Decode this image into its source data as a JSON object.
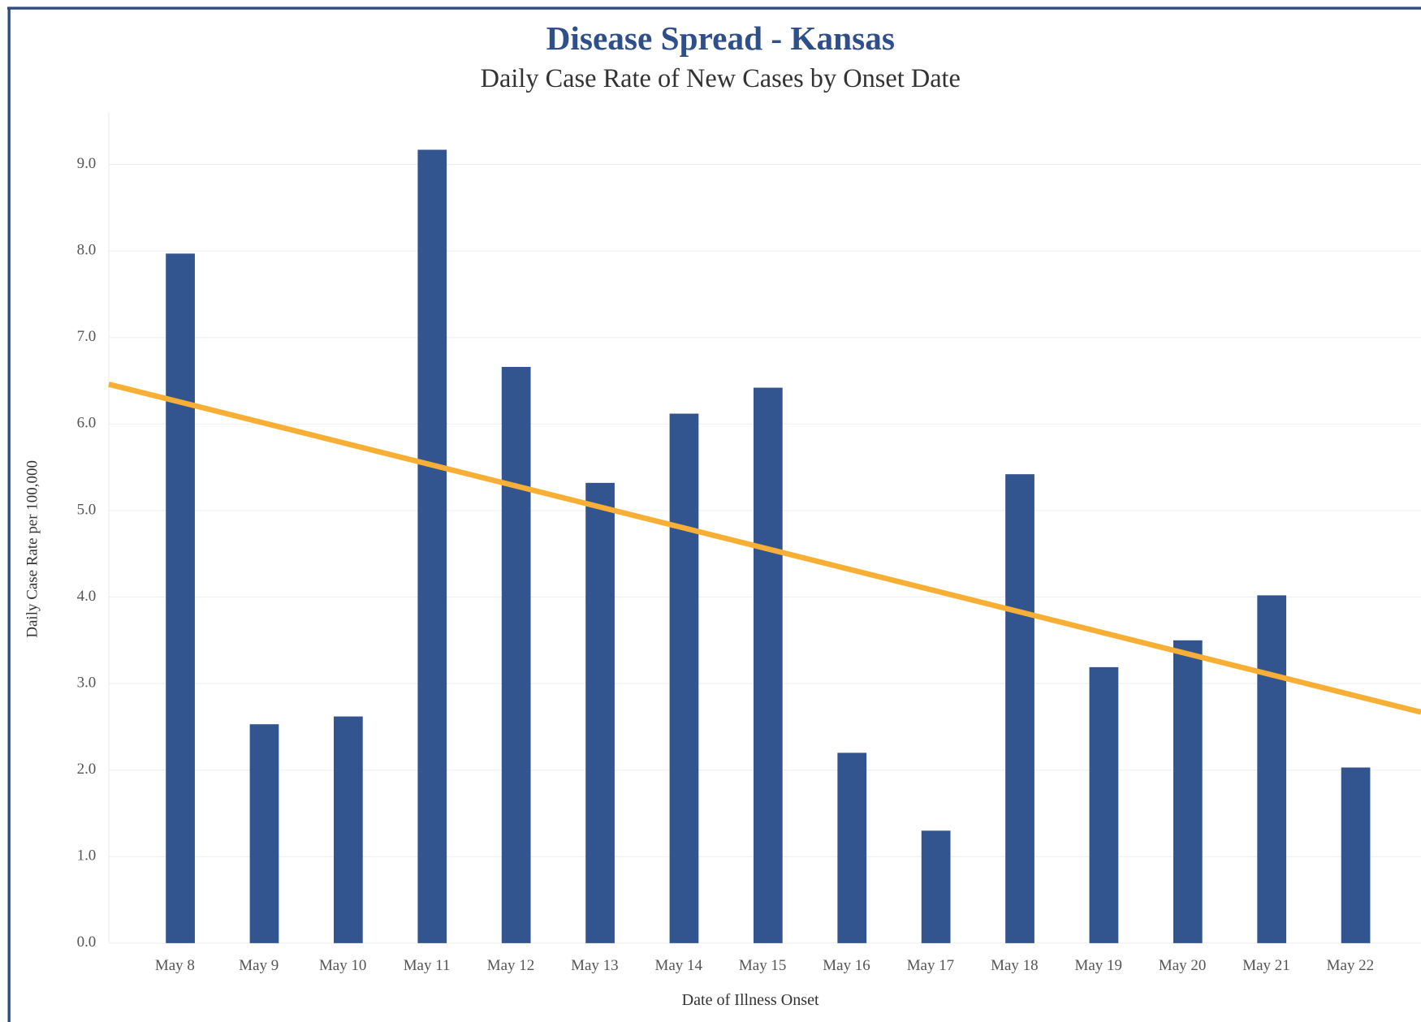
{
  "chart_data": {
    "type": "bar",
    "title": "Disease Spread - Kansas",
    "subtitle": "Daily Case Rate of New Cases by Onset Date",
    "x_label": "Date of Illness Onset",
    "y_label": "Daily Case Rate per 100,000",
    "categories": [
      "May 8",
      "May 9",
      "May 10",
      "May 11",
      "May 12",
      "May 13",
      "May 14",
      "May 15",
      "May 16",
      "May 17",
      "May 18",
      "May 19",
      "May 20",
      "May 21",
      "May 22"
    ],
    "values": [
      7.97,
      2.53,
      2.62,
      9.17,
      6.66,
      5.32,
      6.12,
      6.42,
      2.2,
      1.3,
      5.42,
      3.19,
      3.5,
      4.02,
      2.03
    ],
    "color": "#32548f",
    "trend_line": {
      "color": "#f7b035",
      "values": [
        6.46,
        2.67
      ]
    },
    "ylim": [
      0,
      9.6
    ],
    "yticks": [
      {
        "value": 0,
        "label": "0.0"
      },
      {
        "value": 1,
        "label": "1.0"
      },
      {
        "value": 2,
        "label": "2.0"
      },
      {
        "value": 3,
        "label": "3.0"
      },
      {
        "value": 4,
        "label": "4.0"
      },
      {
        "value": 5,
        "label": "5.0"
      },
      {
        "value": 6,
        "label": "6.0"
      },
      {
        "value": 7,
        "label": "7.0"
      },
      {
        "value": 8,
        "label": "8.0"
      },
      {
        "value": 9,
        "label": "9.0"
      }
    ],
    "grid": true
  }
}
